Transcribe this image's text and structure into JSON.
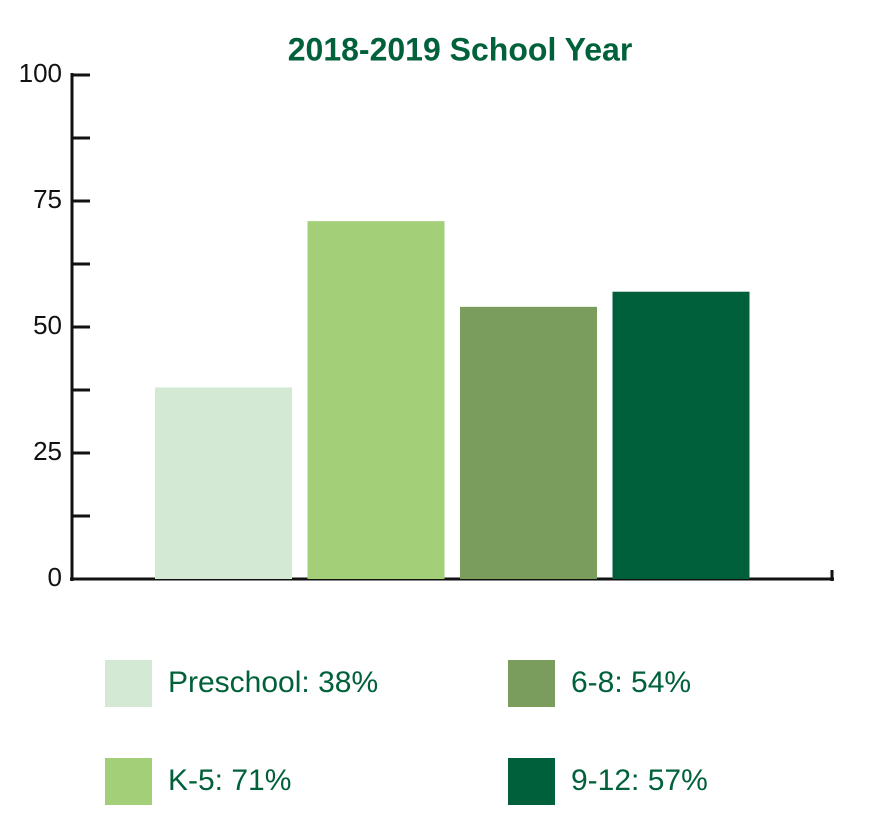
{
  "chart_data": {
    "type": "bar",
    "title": "2018-2019 School Year",
    "series": [
      {
        "name": "Preschool: 38%",
        "color": "#d3e9d3",
        "values": [
          38
        ]
      },
      {
        "name": "K-5: 71%",
        "color": "#a3cf78",
        "values": [
          71
        ]
      },
      {
        "name": "6-8: 54%",
        "color": "#7a9d5e",
        "values": [
          54
        ]
      },
      {
        "name": "9-12: 57%",
        "color": "#00603c",
        "values": [
          57
        ]
      }
    ],
    "ylim": [
      0,
      100
    ],
    "yticks": [
      0,
      25,
      50,
      75,
      100
    ],
    "minor_yticks": [
      12.5,
      37.5,
      62.5,
      87.5
    ]
  }
}
